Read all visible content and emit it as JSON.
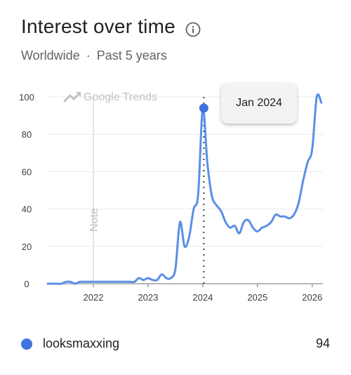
{
  "header": {
    "title": "Interest over time",
    "region": "Worldwide",
    "separator": "·",
    "period": "Past 5 years",
    "info_icon": "info-icon"
  },
  "watermark": "Google Trends",
  "note_label": "Note",
  "tooltip": {
    "date": "Jan 2024"
  },
  "legend": {
    "term": "looksmaxxing",
    "value": "94",
    "color": "#3f73df"
  },
  "chart_data": {
    "type": "line",
    "title": "",
    "xlabel": "",
    "ylabel": "",
    "ylim": [
      0,
      100
    ],
    "yticks": [
      0,
      20,
      40,
      60,
      80,
      100
    ],
    "xticks": [
      "2022",
      "2023",
      "2024",
      "2025",
      "2026"
    ],
    "grid": true,
    "legend_position": "bottom",
    "highlight": {
      "date": "Jan 2024",
      "value": 94
    },
    "note_marker_year": "2022",
    "series": [
      {
        "name": "looksmaxxing",
        "color": "#5b8ee6",
        "points": [
          [
            "2021-03",
            0
          ],
          [
            "2021-04",
            0
          ],
          [
            "2021-05",
            0
          ],
          [
            "2021-06",
            0
          ],
          [
            "2021-07",
            1
          ],
          [
            "2021-08",
            1
          ],
          [
            "2021-09",
            0
          ],
          [
            "2021-10",
            1
          ],
          [
            "2021-11",
            1
          ],
          [
            "2021-12",
            1
          ],
          [
            "2022-01",
            1
          ],
          [
            "2022-02",
            1
          ],
          [
            "2022-03",
            1
          ],
          [
            "2022-04",
            1
          ],
          [
            "2022-05",
            1
          ],
          [
            "2022-06",
            1
          ],
          [
            "2022-07",
            1
          ],
          [
            "2022-08",
            1
          ],
          [
            "2022-09",
            1
          ],
          [
            "2022-10",
            1
          ],
          [
            "2022-11",
            3
          ],
          [
            "2022-12",
            2
          ],
          [
            "2023-01",
            3
          ],
          [
            "2023-02",
            2
          ],
          [
            "2023-03",
            2
          ],
          [
            "2023-04",
            5
          ],
          [
            "2023-05",
            3
          ],
          [
            "2023-06",
            3
          ],
          [
            "2023-07",
            8
          ],
          [
            "2023-08",
            33
          ],
          [
            "2023-09",
            20
          ],
          [
            "2023-10",
            25
          ],
          [
            "2023-11",
            40
          ],
          [
            "2023-12",
            48
          ],
          [
            "2024-01",
            94
          ],
          [
            "2024-02",
            65
          ],
          [
            "2024-03",
            47
          ],
          [
            "2024-04",
            42
          ],
          [
            "2024-05",
            39
          ],
          [
            "2024-06",
            33
          ],
          [
            "2024-07",
            30
          ],
          [
            "2024-08",
            31
          ],
          [
            "2024-09",
            27
          ],
          [
            "2024-10",
            33
          ],
          [
            "2024-11",
            34
          ],
          [
            "2024-12",
            30
          ],
          [
            "2025-01",
            28
          ],
          [
            "2025-02",
            30
          ],
          [
            "2025-03",
            31
          ],
          [
            "2025-04",
            33
          ],
          [
            "2025-05",
            37
          ],
          [
            "2025-06",
            36
          ],
          [
            "2025-07",
            36
          ],
          [
            "2025-08",
            35
          ],
          [
            "2025-09",
            37
          ],
          [
            "2025-10",
            43
          ],
          [
            "2025-11",
            55
          ],
          [
            "2025-12",
            65
          ],
          [
            "2026-01",
            72
          ],
          [
            "2026-02",
            100
          ],
          [
            "2026-03",
            97
          ]
        ]
      }
    ]
  }
}
